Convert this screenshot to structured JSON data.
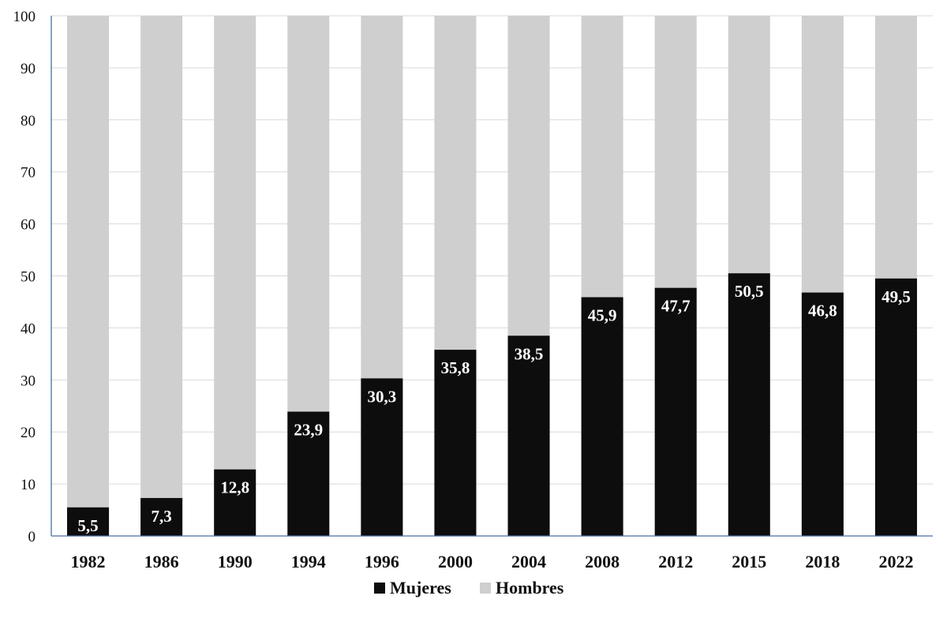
{
  "chart_data": {
    "type": "bar",
    "stacked": true,
    "categories": [
      "1982",
      "1986",
      "1990",
      "1994",
      "1996",
      "2000",
      "2004",
      "2008",
      "2012",
      "2015",
      "2018",
      "2022"
    ],
    "series": [
      {
        "name": "Mujeres",
        "color": "#0d0d0d",
        "values": [
          5.5,
          7.3,
          12.8,
          23.9,
          30.3,
          35.8,
          38.5,
          45.9,
          47.7,
          50.5,
          46.8,
          49.5
        ],
        "labels": [
          "5,5",
          "7,3",
          "12,8",
          "23,9",
          "30,3",
          "35,8",
          "38,5",
          "45,9",
          "47,7",
          "50,5",
          "46,8",
          "49,5"
        ]
      },
      {
        "name": "Hombres",
        "color": "#d0cfd0",
        "values": [
          94.5,
          92.7,
          87.2,
          76.1,
          69.7,
          64.2,
          61.5,
          54.1,
          52.3,
          49.5,
          53.2,
          50.5
        ]
      }
    ],
    "ylim": [
      0,
      100
    ],
    "yticks": [
      "0",
      "10",
      "20",
      "30",
      "40",
      "50",
      "60",
      "70",
      "80",
      "90",
      "100"
    ],
    "grid": true,
    "legend": "bottom-center",
    "title": "",
    "xlabel": "",
    "ylabel": ""
  }
}
